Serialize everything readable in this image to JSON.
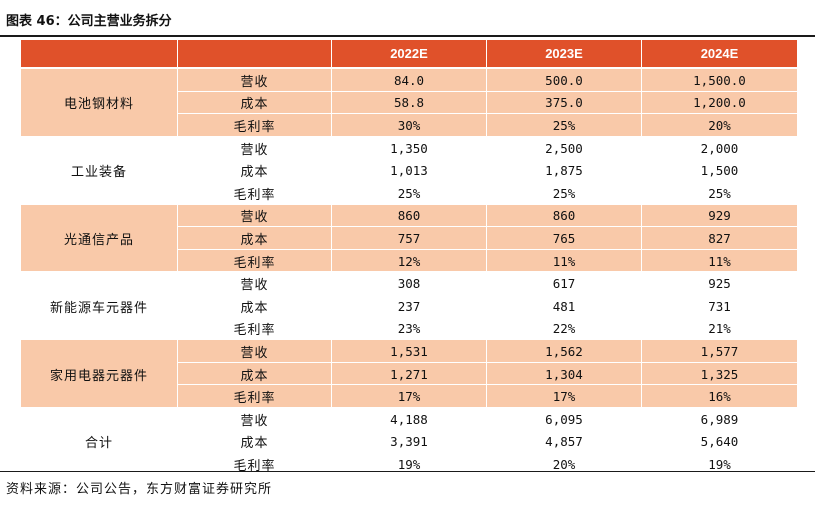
{
  "title": "图表 46：公司主营业务拆分",
  "columns": [
    "2022E",
    "2023E",
    "2024E"
  ],
  "groups": [
    {
      "name": "电池钢材料",
      "shaded": true,
      "rows": [
        {
          "label": "营收",
          "values": [
            "84.0",
            "500.0",
            "1,500.0"
          ]
        },
        {
          "label": "成本",
          "values": [
            "58.8",
            "375.0",
            "1,200.0"
          ]
        },
        {
          "label": "毛利率",
          "values": [
            "30%",
            "25%",
            "20%"
          ]
        }
      ]
    },
    {
      "name": "工业装备",
      "shaded": false,
      "rows": [
        {
          "label": "营收",
          "values": [
            "1,350",
            "2,500",
            "2,000"
          ]
        },
        {
          "label": "成本",
          "values": [
            "1,013",
            "1,875",
            "1,500"
          ]
        },
        {
          "label": "毛利率",
          "values": [
            "25%",
            "25%",
            "25%"
          ]
        }
      ]
    },
    {
      "name": "光通信产品",
      "shaded": true,
      "rows": [
        {
          "label": "营收",
          "values": [
            "860",
            "860",
            "929"
          ]
        },
        {
          "label": "成本",
          "values": [
            "757",
            "765",
            "827"
          ]
        },
        {
          "label": "毛利率",
          "values": [
            "12%",
            "11%",
            "11%"
          ]
        }
      ]
    },
    {
      "name": "新能源车元器件",
      "shaded": false,
      "rows": [
        {
          "label": "营收",
          "values": [
            "308",
            "617",
            "925"
          ]
        },
        {
          "label": "成本",
          "values": [
            "237",
            "481",
            "731"
          ]
        },
        {
          "label": "毛利率",
          "values": [
            "23%",
            "22%",
            "21%"
          ]
        }
      ]
    },
    {
      "name": "家用电器元器件",
      "shaded": true,
      "rows": [
        {
          "label": "营收",
          "values": [
            "1,531",
            "1,562",
            "1,577"
          ]
        },
        {
          "label": "成本",
          "values": [
            "1,271",
            "1,304",
            "1,325"
          ]
        },
        {
          "label": "毛利率",
          "values": [
            "17%",
            "17%",
            "16%"
          ]
        }
      ]
    },
    {
      "name": "合计",
      "shaded": false,
      "rows": [
        {
          "label": "营收",
          "values": [
            "4,188",
            "6,095",
            "6,989"
          ]
        },
        {
          "label": "成本",
          "values": [
            "3,391",
            "4,857",
            "5,640"
          ]
        },
        {
          "label": "毛利率",
          "values": [
            "19%",
            "20%",
            "19%"
          ]
        }
      ]
    }
  ],
  "source": "资料来源：公司公告，东方财富证券研究所"
}
